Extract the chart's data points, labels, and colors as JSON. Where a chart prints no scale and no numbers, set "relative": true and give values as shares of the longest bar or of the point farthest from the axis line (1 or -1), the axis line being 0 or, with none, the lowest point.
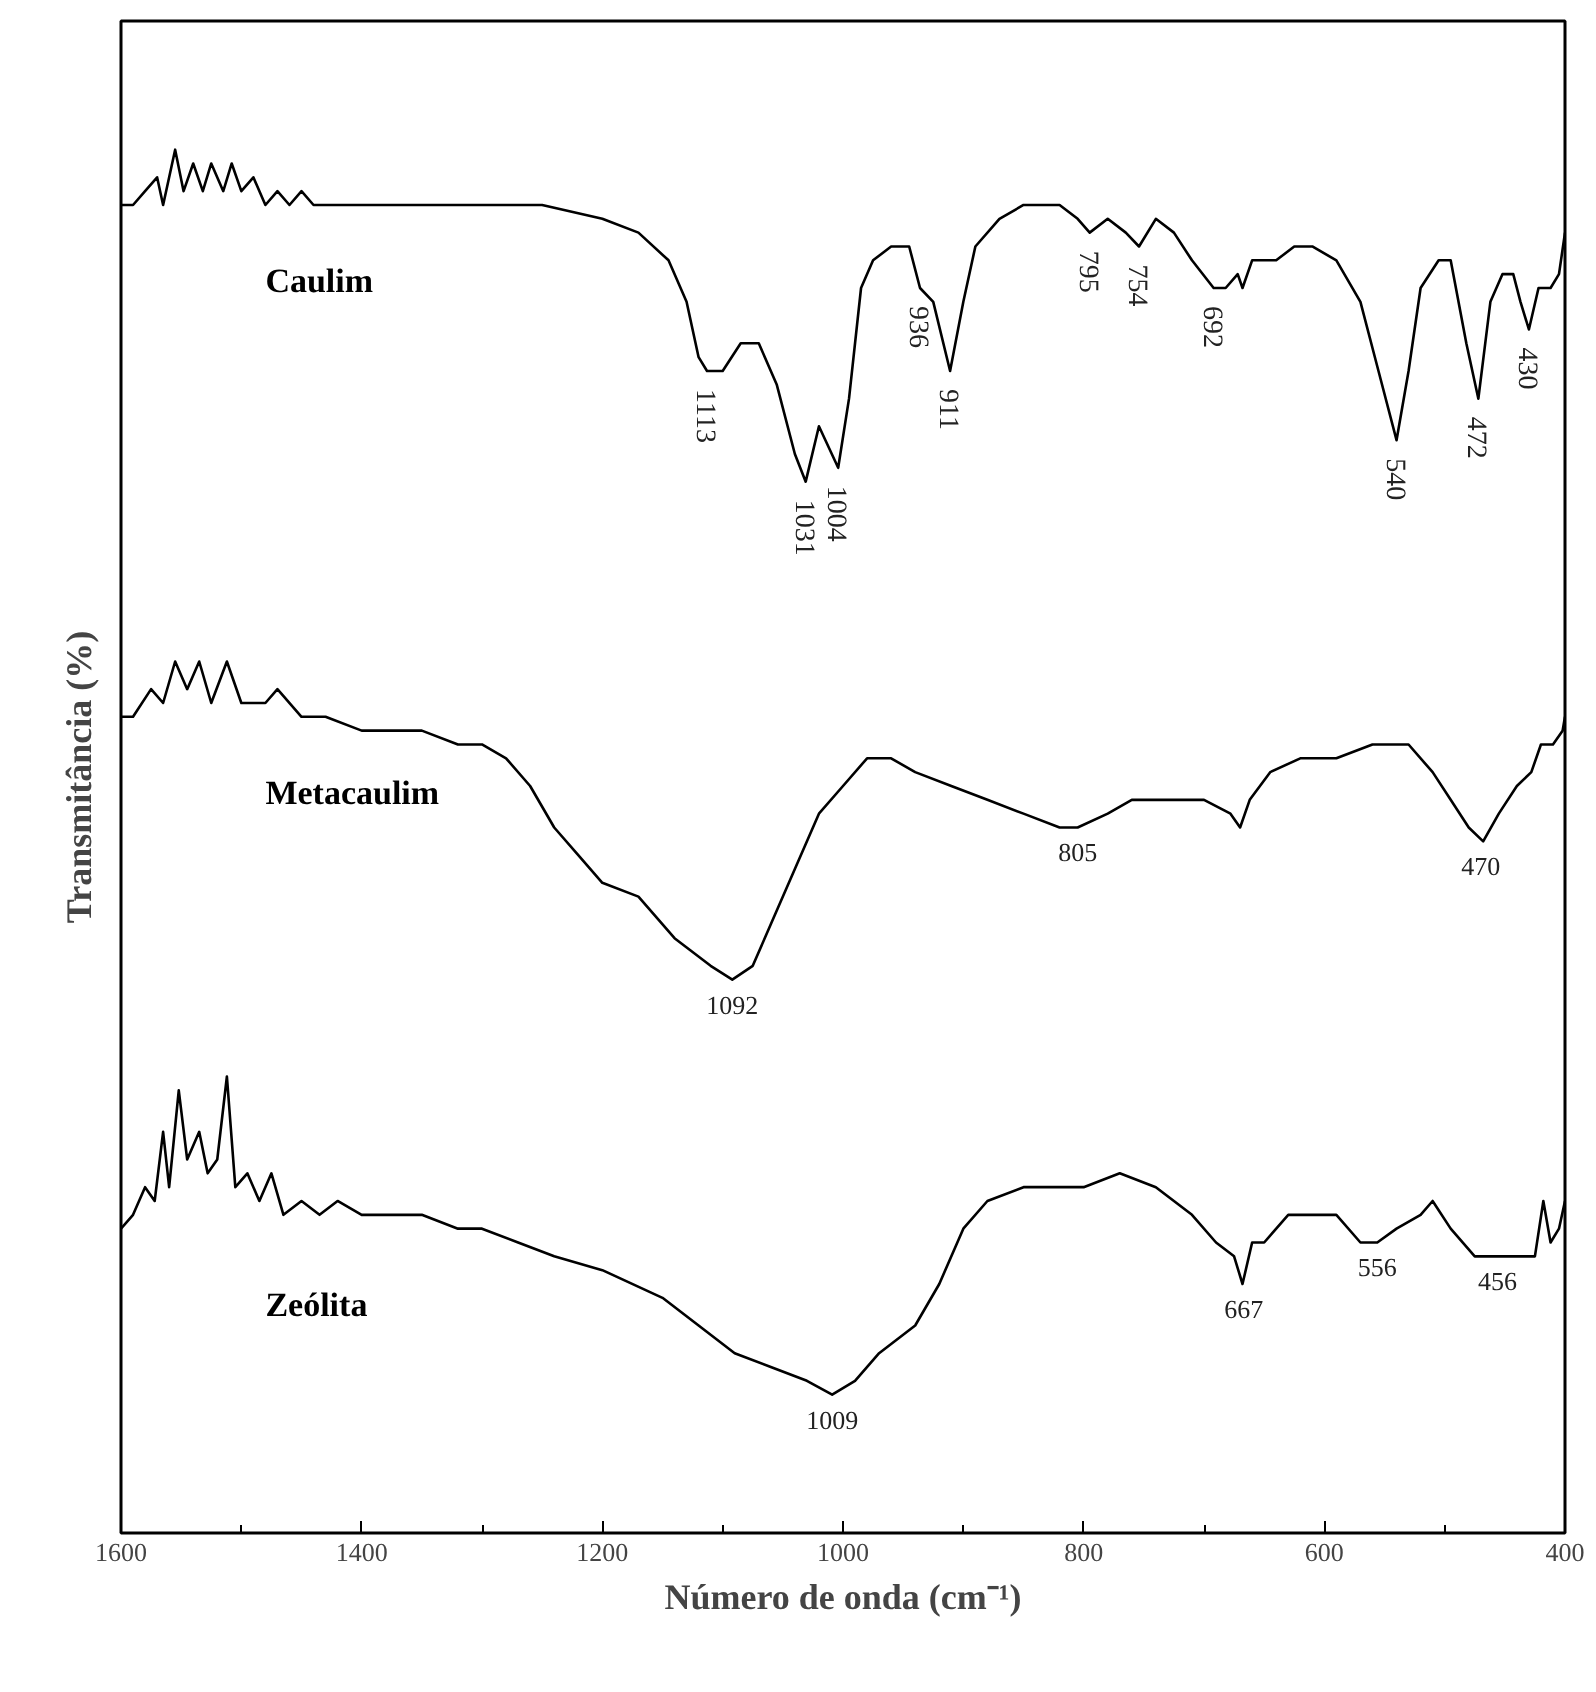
{
  "chart_data": {
    "type": "line",
    "relative": true,
    "xlabel": "Número de onda (cm⁻¹)",
    "ylabel": "Transmitância (%)",
    "xlim": [
      1600,
      400
    ],
    "xticks": [
      1600,
      1400,
      1200,
      1000,
      800,
      600,
      400
    ],
    "series": [
      {
        "name": "Caulim",
        "color": "#000000",
        "x": [
          1600,
          1590,
          1580,
          1570,
          1565,
          1555,
          1548,
          1540,
          1532,
          1525,
          1515,
          1508,
          1500,
          1490,
          1480,
          1470,
          1460,
          1450,
          1440,
          1420,
          1400,
          1380,
          1350,
          1300,
          1250,
          1200,
          1170,
          1145,
          1130,
          1120,
          1113,
          1100,
          1085,
          1070,
          1055,
          1040,
          1031,
          1020,
          1004,
          995,
          985,
          975,
          960,
          945,
          936,
          925,
          911,
          900,
          890,
          870,
          850,
          820,
          805,
          795,
          780,
          765,
          754,
          740,
          725,
          710,
          692,
          682,
          672,
          668,
          660,
          640,
          625,
          610,
          590,
          570,
          555,
          540,
          530,
          520,
          505,
          495,
          482,
          472,
          462,
          452,
          443,
          437,
          430,
          422,
          412,
          405,
          400
        ],
        "values": [
          0.96,
          0.96,
          0.97,
          0.98,
          0.96,
          1.0,
          0.97,
          0.99,
          0.97,
          0.99,
          0.97,
          0.99,
          0.97,
          0.98,
          0.96,
          0.97,
          0.96,
          0.97,
          0.96,
          0.96,
          0.96,
          0.96,
          0.96,
          0.96,
          0.96,
          0.95,
          0.94,
          0.92,
          0.89,
          0.85,
          0.84,
          0.84,
          0.86,
          0.86,
          0.83,
          0.78,
          0.76,
          0.8,
          0.77,
          0.82,
          0.9,
          0.92,
          0.93,
          0.93,
          0.9,
          0.89,
          0.84,
          0.89,
          0.93,
          0.95,
          0.96,
          0.96,
          0.95,
          0.94,
          0.95,
          0.94,
          0.93,
          0.95,
          0.94,
          0.92,
          0.9,
          0.9,
          0.91,
          0.9,
          0.92,
          0.92,
          0.93,
          0.93,
          0.92,
          0.89,
          0.84,
          0.79,
          0.84,
          0.9,
          0.92,
          0.92,
          0.86,
          0.82,
          0.89,
          0.91,
          0.91,
          0.89,
          0.87,
          0.9,
          0.9,
          0.91,
          0.94
        ]
      },
      {
        "name": "Metacaulim",
        "color": "#000000",
        "x": [
          1600,
          1590,
          1575,
          1565,
          1555,
          1545,
          1535,
          1525,
          1512,
          1500,
          1480,
          1470,
          1450,
          1430,
          1400,
          1380,
          1350,
          1320,
          1300,
          1280,
          1260,
          1240,
          1220,
          1200,
          1170,
          1140,
          1110,
          1092,
          1075,
          1060,
          1040,
          1020,
          1000,
          980,
          960,
          940,
          910,
          880,
          850,
          820,
          805,
          780,
          760,
          740,
          720,
          700,
          678,
          670,
          662,
          645,
          620,
          590,
          560,
          530,
          510,
          495,
          480,
          468,
          455,
          440,
          428,
          420,
          410,
          402,
          400
        ],
        "values": [
          0.59,
          0.59,
          0.61,
          0.6,
          0.63,
          0.61,
          0.63,
          0.6,
          0.63,
          0.6,
          0.6,
          0.61,
          0.59,
          0.59,
          0.58,
          0.58,
          0.58,
          0.57,
          0.57,
          0.56,
          0.54,
          0.51,
          0.49,
          0.47,
          0.46,
          0.43,
          0.41,
          0.4,
          0.41,
          0.44,
          0.48,
          0.52,
          0.54,
          0.56,
          0.56,
          0.55,
          0.54,
          0.53,
          0.52,
          0.51,
          0.51,
          0.52,
          0.53,
          0.53,
          0.53,
          0.53,
          0.52,
          0.51,
          0.53,
          0.55,
          0.56,
          0.56,
          0.57,
          0.57,
          0.55,
          0.53,
          0.51,
          0.5,
          0.52,
          0.54,
          0.55,
          0.57,
          0.57,
          0.58,
          0.59
        ]
      },
      {
        "name": "Zeólita",
        "color": "#000000",
        "x": [
          1600,
          1590,
          1580,
          1572,
          1565,
          1560,
          1552,
          1545,
          1535,
          1528,
          1520,
          1512,
          1505,
          1495,
          1485,
          1475,
          1465,
          1450,
          1435,
          1420,
          1400,
          1380,
          1350,
          1320,
          1300,
          1270,
          1240,
          1200,
          1150,
          1120,
          1090,
          1060,
          1030,
          1009,
          990,
          970,
          940,
          920,
          900,
          880,
          850,
          820,
          800,
          770,
          740,
          710,
          690,
          675,
          668,
          660,
          650,
          630,
          610,
          590,
          570,
          556,
          540,
          520,
          510,
          495,
          475,
          456,
          440,
          425,
          418,
          412,
          405,
          400
        ],
        "values": [
          0.22,
          0.23,
          0.25,
          0.24,
          0.29,
          0.25,
          0.32,
          0.27,
          0.29,
          0.26,
          0.27,
          0.33,
          0.25,
          0.26,
          0.24,
          0.26,
          0.23,
          0.24,
          0.23,
          0.24,
          0.23,
          0.23,
          0.23,
          0.22,
          0.22,
          0.21,
          0.2,
          0.19,
          0.17,
          0.15,
          0.13,
          0.12,
          0.11,
          0.1,
          0.11,
          0.13,
          0.15,
          0.18,
          0.22,
          0.24,
          0.25,
          0.25,
          0.25,
          0.26,
          0.25,
          0.23,
          0.21,
          0.2,
          0.18,
          0.21,
          0.21,
          0.23,
          0.23,
          0.23,
          0.21,
          0.21,
          0.22,
          0.23,
          0.24,
          0.22,
          0.2,
          0.2,
          0.2,
          0.2,
          0.24,
          0.21,
          0.22,
          0.24
        ]
      }
    ],
    "annotations": [
      {
        "text": "1113",
        "x": 1113,
        "y": 0.84
      },
      {
        "text": "1031",
        "x": 1031,
        "y": 0.76
      },
      {
        "text": "1004",
        "x": 1004,
        "y": 0.77
      },
      {
        "text": "936",
        "x": 936,
        "y": 0.9
      },
      {
        "text": "911",
        "x": 911,
        "y": 0.84
      },
      {
        "text": "795",
        "x": 795,
        "y": 0.94
      },
      {
        "text": "754",
        "x": 754,
        "y": 0.93
      },
      {
        "text": "692",
        "x": 692,
        "y": 0.9
      },
      {
        "text": "540",
        "x": 540,
        "y": 0.79
      },
      {
        "text": "472",
        "x": 472,
        "y": 0.82
      },
      {
        "text": "430",
        "x": 430,
        "y": 0.87
      },
      {
        "text": "1092",
        "x": 1092,
        "y": 0.4
      },
      {
        "text": "805",
        "x": 805,
        "y": 0.51
      },
      {
        "text": "470",
        "x": 470,
        "y": 0.5
      },
      {
        "text": "1009",
        "x": 1009,
        "y": 0.1
      },
      {
        "text": "667",
        "x": 667,
        "y": 0.18
      },
      {
        "text": "556",
        "x": 556,
        "y": 0.21
      },
      {
        "text": "456",
        "x": 456,
        "y": 0.2
      }
    ]
  }
}
